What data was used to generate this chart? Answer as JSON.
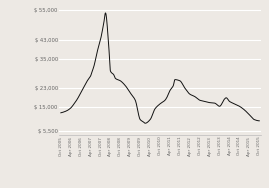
{
  "background_color": "#ede9e4",
  "line_color": "#111111",
  "grid_color": "#ffffff",
  "ylim": [
    3500,
    57000
  ],
  "yticks": [
    5500,
    15000,
    23000,
    35000,
    43000,
    55000
  ],
  "ytick_labels": [
    "$ 5,500",
    "$ 15,000",
    "$ 23,000",
    "$ 35,000",
    "$ 43,000",
    "$ 55,000"
  ],
  "xtick_labels": [
    "Oct 2005",
    "Apr 2006",
    "Oct 2006",
    "Apr 2007",
    "Oct 2007",
    "Apr 2008",
    "Oct 2008",
    "Apr 2009",
    "Oct 2009",
    "Apr 2010",
    "Oct 2010",
    "Apr 2011",
    "Oct 2011",
    "Apr 2012",
    "Oct 2012",
    "Apr 2013",
    "Oct 2013",
    "Apr 2014",
    "Oct 2014",
    "Apr 2015",
    "Oct 2015"
  ],
  "key_months": [
    0,
    2,
    4,
    6,
    8,
    10,
    12,
    14,
    16,
    17,
    18,
    19,
    20,
    22,
    24,
    26,
    27,
    29,
    30,
    32,
    33,
    36,
    39,
    42,
    45,
    48,
    50,
    51,
    54,
    57,
    60,
    63,
    64,
    66,
    68,
    69,
    72,
    75,
    78,
    81,
    84,
    87,
    90,
    93,
    96,
    99,
    100,
    102,
    105,
    108,
    111,
    114,
    117,
    120
  ],
  "key_prices": [
    12800,
    13200,
    13800,
    14800,
    16500,
    18500,
    21000,
    23500,
    26000,
    27000,
    28000,
    30000,
    32000,
    38000,
    43000,
    50000,
    54000,
    40000,
    30000,
    28500,
    27000,
    26000,
    24000,
    21000,
    18000,
    10000,
    9000,
    8500,
    10000,
    14500,
    16500,
    18000,
    19000,
    22000,
    24000,
    26500,
    26000,
    23000,
    20500,
    19500,
    18000,
    17500,
    17000,
    16800,
    15500,
    18500,
    19000,
    17500,
    16500,
    15500,
    14000,
    12000,
    10000,
    9500
  ]
}
